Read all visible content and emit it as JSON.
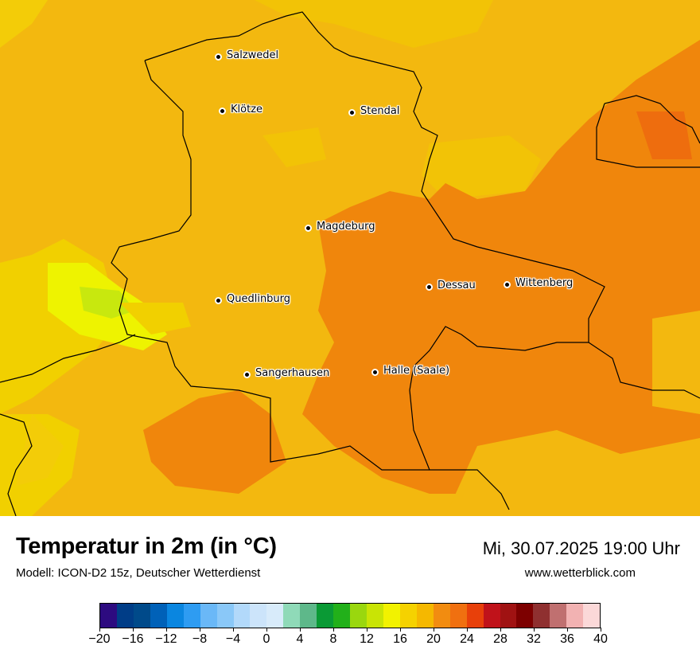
{
  "map": {
    "cities": [
      {
        "name": "Salzwedel"
      },
      {
        "name": "Klötze"
      },
      {
        "name": "Stendal"
      },
      {
        "name": "Magdeburg"
      },
      {
        "name": "Dessau"
      },
      {
        "name": "Wittenberg"
      },
      {
        "name": "Quedlinburg"
      },
      {
        "name": "Sangerhausen"
      },
      {
        "name": "Halle (Saale)"
      }
    ]
  },
  "footer": {
    "title": "Temperatur in 2m (in °C)",
    "subtitle": "Modell: ICON-D2 15z, Deutscher Wetterdienst",
    "datetime": "Mi, 30.07.2025 19:00 Uhr",
    "website": "www.wetterblick.com"
  },
  "legend": {
    "ticks": [
      "−20",
      "−16",
      "−12",
      "−8",
      "−4",
      "0",
      "4",
      "8",
      "12",
      "16",
      "20",
      "24",
      "28",
      "32",
      "36",
      "40"
    ],
    "colors": [
      "#2d0b80",
      "#003d87",
      "#004a8a",
      "#0061b8",
      "#0a86e0",
      "#2e9cf2",
      "#6ab8f7",
      "#8ac8f8",
      "#b2d9fa",
      "#cce4fa",
      "#d8ebfa",
      "#8fdab8",
      "#5eb88a",
      "#0a9a35",
      "#22b01a",
      "#9ad70e",
      "#c9e405",
      "#f2f200",
      "#f5d200",
      "#f5b800",
      "#f28c10",
      "#f07010",
      "#e8400a",
      "#c0121a",
      "#a01212",
      "#7d0000",
      "#8f3030",
      "#c07070",
      "#f2b2b2",
      "#fbd8d8"
    ]
  }
}
